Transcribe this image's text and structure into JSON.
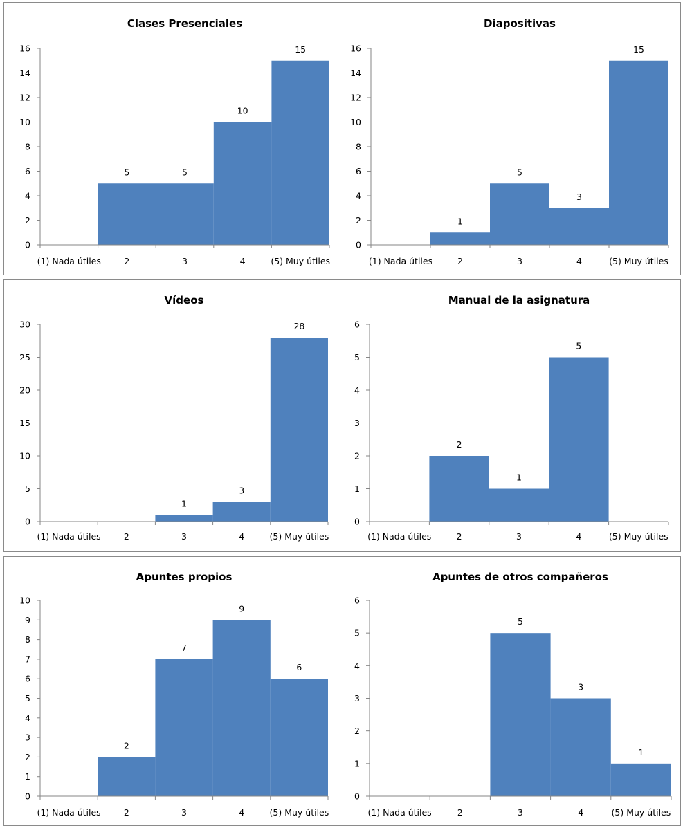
{
  "chart_data": [
    {
      "type": "bar",
      "title": "Clases Presenciales",
      "categories": [
        "(1) Nada útiles",
        "2",
        "3",
        "4",
        "(5) Muy útiles"
      ],
      "values": [
        0,
        5,
        5,
        10,
        15
      ],
      "ylim": [
        0,
        16
      ],
      "yticks": [
        0,
        2,
        4,
        6,
        8,
        10,
        12,
        14,
        16
      ],
      "bar_color": "#4f81bd",
      "gap": 0,
      "grid": false,
      "legend": "none"
    },
    {
      "type": "bar",
      "title": "Diapositivas",
      "categories": [
        "(1) Nada útiles",
        "2",
        "3",
        "4",
        "(5) Muy útiles"
      ],
      "values": [
        0,
        1,
        5,
        3,
        15
      ],
      "ylim": [
        0,
        16
      ],
      "yticks": [
        0,
        2,
        4,
        6,
        8,
        10,
        12,
        14,
        16
      ],
      "bar_color": "#4f81bd",
      "gap": 0,
      "grid": false,
      "legend": "none"
    },
    {
      "type": "bar",
      "title": "Vídeos",
      "categories": [
        "(1) Nada útiles",
        "2",
        "3",
        "4",
        "(5) Muy útiles"
      ],
      "values": [
        0,
        0,
        1,
        3,
        28
      ],
      "ylim": [
        0,
        30
      ],
      "yticks": [
        0,
        5,
        10,
        15,
        20,
        25,
        30
      ],
      "bar_color": "#4f81bd",
      "gap": 0,
      "grid": false,
      "legend": "none"
    },
    {
      "type": "bar",
      "title": "Manual de la asignatura",
      "categories": [
        "(1) Nada útiles",
        "2",
        "3",
        "4",
        "(5) Muy útiles"
      ],
      "values": [
        0,
        2,
        1,
        5,
        0
      ],
      "ylim": [
        0,
        6
      ],
      "yticks": [
        0,
        1,
        2,
        3,
        4,
        5,
        6
      ],
      "bar_color": "#4f81bd",
      "gap": 0,
      "grid": false,
      "legend": "none"
    },
    {
      "type": "bar",
      "title": "Apuntes propios",
      "categories": [
        "(1) Nada útiles",
        "2",
        "3",
        "4",
        "(5) Muy útiles"
      ],
      "values": [
        0,
        2,
        7,
        9,
        6
      ],
      "ylim": [
        0,
        10
      ],
      "yticks": [
        0,
        1,
        2,
        3,
        4,
        5,
        6,
        7,
        8,
        9,
        10
      ],
      "bar_color": "#4f81bd",
      "gap": 0,
      "grid": false,
      "legend": "none"
    },
    {
      "type": "bar",
      "title": "Apuntes de otros compañeros",
      "categories": [
        "(1) Nada útiles",
        "2",
        "3",
        "4",
        "(5) Muy útiles"
      ],
      "values": [
        0,
        0,
        5,
        3,
        1
      ],
      "ylim": [
        0,
        6
      ],
      "yticks": [
        0,
        1,
        2,
        3,
        4,
        5,
        6
      ],
      "bar_color": "#4f81bd",
      "gap": 0,
      "grid": false,
      "legend": "none"
    }
  ]
}
